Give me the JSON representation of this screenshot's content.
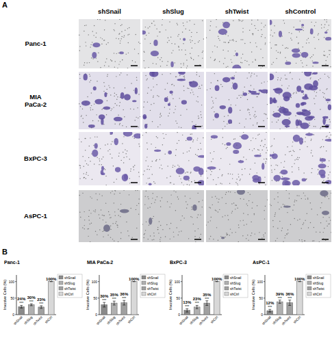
{
  "figure": {
    "panel_a": {
      "label": "A",
      "columns": [
        "shSnail",
        "shSlug",
        "shTwist",
        "shControl"
      ],
      "rows": [
        "Panc-1",
        "MIA PaCa-2",
        "BxPC-3",
        "AsPC-1"
      ]
    },
    "panel_b": {
      "label": "B"
    }
  },
  "chart_data": [
    {
      "type": "bar",
      "title": "Panc-1",
      "y_label": "Invasive Cells (%)",
      "categories": [
        "shSnail",
        "shSlug",
        "shTwist",
        "shCtrl"
      ],
      "values": [
        24,
        30,
        23,
        100
      ],
      "value_labels": [
        "24%",
        "30%",
        "23%",
        "100%"
      ],
      "errors": [
        4,
        3,
        4,
        0
      ],
      "colors": [
        "#8a8a8a",
        "#b0b0b0",
        "#a0a0a0",
        "#d8d8d8"
      ],
      "annotations": [
        {
          "category": "shSnail",
          "text": "***"
        },
        {
          "category": "shSlug",
          "text": "***"
        },
        {
          "category": "shTwist",
          "text": "***"
        }
      ],
      "ylim": [
        0,
        120
      ],
      "yticks": [
        0,
        50,
        100
      ],
      "data_labels": true,
      "legend": "right"
    },
    {
      "type": "bar",
      "title": "MIA PaCa-2",
      "y_label": "Invasive Cells (%)",
      "categories": [
        "shSnail",
        "shSlug",
        "shTwist",
        "shCtrl"
      ],
      "values": [
        30,
        35,
        36,
        100
      ],
      "value_labels": [
        "30%",
        "35%",
        "36%",
        "100%"
      ],
      "errors": [
        7,
        6,
        7,
        0
      ],
      "colors": [
        "#8a8a8a",
        "#b0b0b0",
        "#a0a0a0",
        "#d8d8d8"
      ],
      "annotations": [
        {
          "category": "shSnail",
          "text": "***"
        },
        {
          "category": "shSlug",
          "text": "***"
        },
        {
          "category": "shTwist",
          "text": "***"
        }
      ],
      "ylim": [
        0,
        120
      ],
      "yticks": [
        0,
        50,
        100
      ],
      "data_labels": true,
      "legend": "right"
    },
    {
      "type": "bar",
      "title": "BxPC-3",
      "y_label": "Invasive Cells (%)",
      "categories": [
        "shSnail",
        "shSlug",
        "shTwist",
        "shCtrl"
      ],
      "values": [
        13,
        23,
        35,
        100
      ],
      "value_labels": [
        "13%",
        "23%",
        "35%",
        "100%"
      ],
      "errors": [
        5,
        5,
        7,
        0
      ],
      "colors": [
        "#8a8a8a",
        "#b0b0b0",
        "#a0a0a0",
        "#d8d8d8"
      ],
      "annotations": [
        {
          "category": "shSnail",
          "text": "***"
        },
        {
          "category": "shSlug",
          "text": "***"
        },
        {
          "category": "shTwist",
          "text": "***"
        }
      ],
      "ylim": [
        0,
        120
      ],
      "yticks": [
        0,
        50,
        100
      ],
      "data_labels": true,
      "legend": "right"
    },
    {
      "type": "bar",
      "title": "AsPC-1",
      "y_label": "Invasive Cells (%)",
      "categories": [
        "shSnail",
        "shSlug",
        "shTwist",
        "shCtrl"
      ],
      "values": [
        12,
        39,
        36,
        100
      ],
      "value_labels": [
        "12%",
        "39%",
        "36%",
        "100%"
      ],
      "errors": [
        4,
        5,
        8,
        0
      ],
      "colors": [
        "#8a8a8a",
        "#b0b0b0",
        "#a0a0a0",
        "#d8d8d8"
      ],
      "annotations": [
        {
          "category": "shSnail",
          "text": "***"
        },
        {
          "category": "shSlug",
          "text": "***"
        },
        {
          "category": "shTwist",
          "text": "***"
        }
      ],
      "ylim": [
        0,
        120
      ],
      "yticks": [
        0,
        50,
        100
      ],
      "data_labels": true,
      "legend": "right"
    }
  ]
}
